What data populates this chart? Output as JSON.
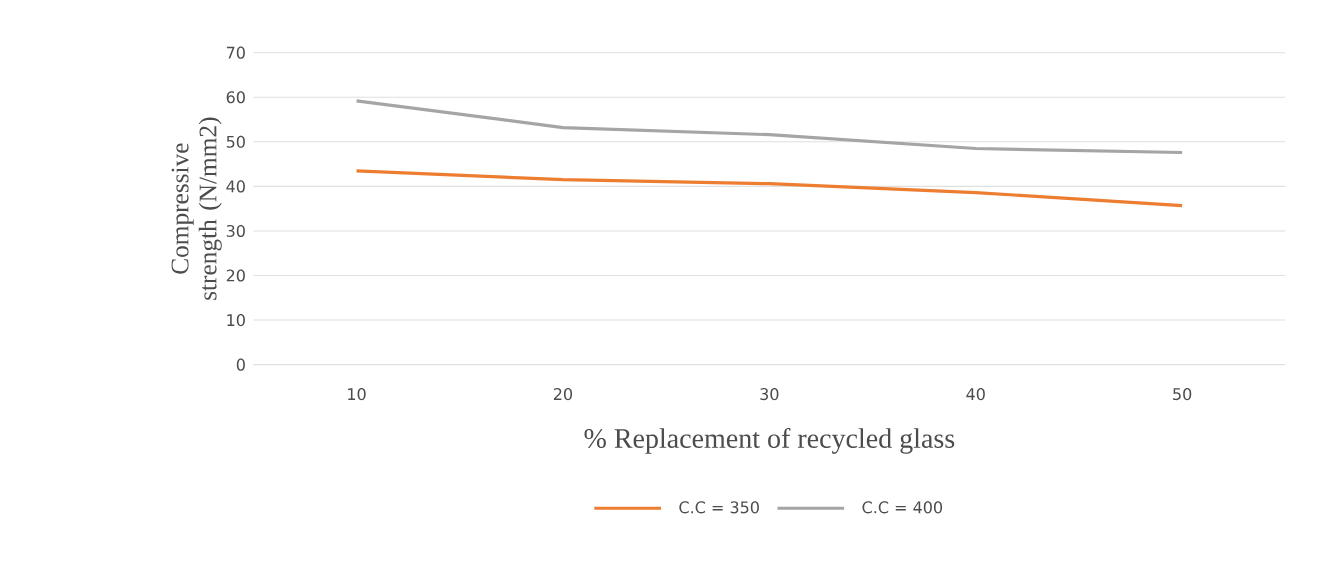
{
  "chart_data": {
    "type": "line",
    "xlabel": "% Replacement of recycled glass",
    "ylabel": "Compressive strength (N/mm2)",
    "categories": [
      "10",
      "20",
      "30",
      "40",
      "50"
    ],
    "series": [
      {
        "name": "C.C = 350",
        "color": "#ed7d31",
        "values": [
          43.5,
          41.5,
          40.6,
          38.6,
          35.7
        ]
      },
      {
        "name": "C.C = 400",
        "color": "#a5a5a5",
        "values": [
          59.2,
          53.2,
          51.6,
          48.5,
          47.6
        ]
      }
    ],
    "ylim": [
      0,
      70
    ],
    "yticks": [
      0,
      10,
      20,
      30,
      40,
      50,
      60,
      70
    ],
    "grid": "y",
    "legend": "bottom",
    "marker": "none",
    "line_style": "solid"
  }
}
